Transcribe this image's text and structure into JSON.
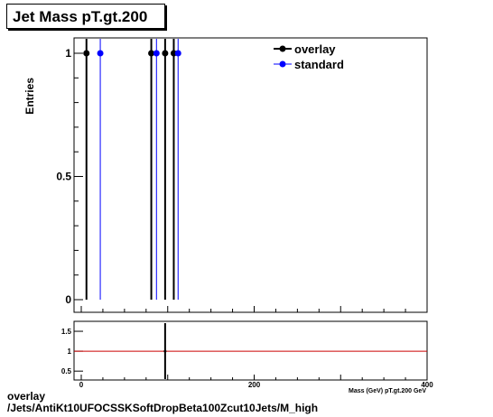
{
  "title": "Jet Mass pT.gt.200",
  "caption": {
    "line1": "overlay",
    "line2": "/Jets/AntiKt10UFOCSSKSoftDropBeta100Zcut10Jets/M_high"
  },
  "chart_data": [
    {
      "type": "histogram",
      "title": "Jet Mass pT.gt.200",
      "ylabel": "Entries",
      "xlim": [
        0,
        400
      ],
      "ylim": [
        0,
        1.05
      ],
      "y_ticks": [
        "0",
        "0.5",
        "1"
      ],
      "legend_position": "top-right",
      "series": [
        {
          "name": "overlay",
          "color": "#000000",
          "x": [
            6,
            81,
            97,
            107
          ],
          "values": [
            1,
            1,
            1,
            1
          ]
        },
        {
          "name": "standard",
          "color": "#0000ff",
          "x": [
            22,
            87,
            112
          ],
          "values": [
            1,
            1,
            1
          ]
        }
      ]
    },
    {
      "type": "ratio",
      "xlim": [
        0,
        400
      ],
      "ylim": [
        0.3,
        1.75
      ],
      "y_ticks": [
        "0.5",
        "1",
        "1.5"
      ],
      "x_ticks": [
        "0",
        "200",
        "400"
      ],
      "xlabel": "Mass (GeV) pT.gt.200 GeV",
      "reference_line": 1,
      "reference_color": "#cc0000",
      "points": [
        {
          "x": 97,
          "y": 1
        }
      ]
    }
  ]
}
